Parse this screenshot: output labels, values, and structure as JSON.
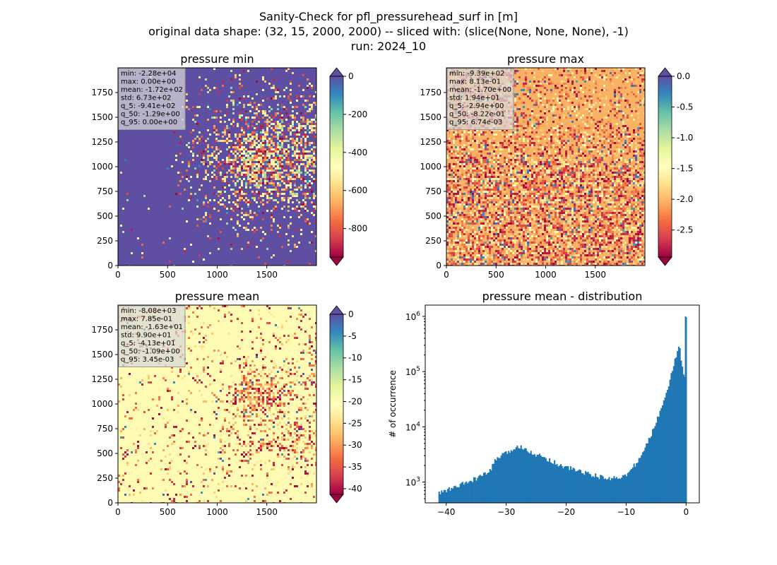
{
  "title_lines": [
    "Sanity-Check for pfl_pressurehead_surf in [m]",
    "original data shape: (32, 15, 2000, 2000) -- sliced with: (slice(None, None, None), -1)",
    "run: 2024_10"
  ],
  "panels": [
    {
      "title": "pressure min",
      "xticks": [
        "0",
        "500",
        "1000",
        "1500"
      ],
      "yticks": [
        "0",
        "250",
        "500",
        "750",
        "1000",
        "1250",
        "1500",
        "1750"
      ],
      "stats": [
        "min: -2.28e+04",
        "max: 0.00e+00",
        "mean: -1.72e+02",
        "std: 6.73e+02",
        "q_5: -9.41e+02",
        "q_50: -1.29e+00",
        "q_95: 0.00e+00"
      ],
      "colorbar": {
        "range": [
          -950,
          0
        ],
        "ticks": [
          "0",
          "-200",
          "-400",
          "-600",
          "-800"
        ],
        "tick_values": [
          0,
          -200,
          -400,
          -600,
          -800
        ],
        "extend": "both"
      },
      "background_color": "#5e4fa2"
    },
    {
      "title": "pressure max",
      "xticks": [
        "0",
        "500",
        "1000",
        "1500"
      ],
      "yticks": [
        "0",
        "250",
        "500",
        "750",
        "1000",
        "1250",
        "1500",
        "1750"
      ],
      "stats": [
        "min: -9.39e+02",
        "max: 8.13e-01",
        "mean: -1.70e+00",
        "std: 1.94e+01",
        "q_5: -2.94e+00",
        "q_50: -8.22e-01",
        "q_95: 6.74e-03"
      ],
      "colorbar": {
        "range": [
          -2.94,
          0.0
        ],
        "ticks": [
          "0.0",
          "-0.5",
          "-1.0",
          "-1.5",
          "-2.0",
          "-2.5"
        ],
        "tick_values": [
          0,
          -0.5,
          -1.0,
          -1.5,
          -2.0,
          -2.5
        ],
        "extend": "both"
      },
      "background_color": "#f7b363"
    },
    {
      "title": "pressure mean",
      "xticks": [
        "0",
        "500",
        "1000",
        "1500"
      ],
      "yticks": [
        "0",
        "250",
        "500",
        "750",
        "1000",
        "1250",
        "1500",
        "1750"
      ],
      "stats": [
        "min: -8.08e+03",
        "max: 7.85e-01",
        "mean: -1.63e+01",
        "std: 9.90e+01",
        "q_5: -4.13e+01",
        "q_50: -1.09e+00",
        "q_95: 3.45e-03"
      ],
      "colorbar": {
        "range": [
          -41.3,
          0
        ],
        "ticks": [
          "0",
          "-5",
          "-10",
          "-15",
          "-20",
          "-25",
          "-30",
          "-35",
          "-40"
        ],
        "tick_values": [
          0,
          -5,
          -10,
          -15,
          -20,
          -25,
          -30,
          -35,
          -40
        ],
        "extend": "both"
      },
      "background_color": "#fdfbb4"
    }
  ],
  "chart_data": [
    {
      "type": "heatmap",
      "title": "pressure min",
      "x_range": [
        0,
        2000
      ],
      "y_range": [
        0,
        2000
      ],
      "colormap": "Spectral",
      "value_range": [
        -950,
        0
      ]
    },
    {
      "type": "heatmap",
      "title": "pressure max",
      "x_range": [
        0,
        2000
      ],
      "y_range": [
        0,
        2000
      ],
      "colormap": "Spectral",
      "value_range": [
        -2.94,
        0.0
      ]
    },
    {
      "type": "heatmap",
      "title": "pressure mean",
      "x_range": [
        0,
        2000
      ],
      "y_range": [
        0,
        2000
      ],
      "colormap": "Spectral",
      "value_range": [
        -41.3,
        0
      ]
    },
    {
      "type": "bar",
      "title": "pressure mean - distribution",
      "xlabel": "",
      "ylabel": "# of occurrence",
      "log_y": true,
      "xlim": [
        -43.5,
        2.2
      ],
      "ylim": [
        420,
        1600000
      ],
      "xticks": [
        "−40",
        "−30",
        "−20",
        "−10",
        "0"
      ],
      "xtick_values": [
        -40,
        -30,
        -20,
        -10,
        0
      ],
      "yticks": [
        {
          "base": "10",
          "exp": "3",
          "value": 1000
        },
        {
          "base": "10",
          "exp": "4",
          "value": 10000
        },
        {
          "base": "10",
          "exp": "5",
          "value": 100000
        },
        {
          "base": "10",
          "exp": "6",
          "value": 1000000
        }
      ],
      "bar_color": "#1f77b4",
      "bin_width": 0.207,
      "anchors": [
        [
          -41.3,
          620
        ],
        [
          -40.5,
          680
        ],
        [
          -39.5,
          740
        ],
        [
          -38.5,
          800
        ],
        [
          -37.5,
          900
        ],
        [
          -36.5,
          980
        ],
        [
          -35.5,
          1100
        ],
        [
          -34.5,
          1250
        ],
        [
          -33.5,
          1380
        ],
        [
          -33.0,
          1500
        ],
        [
          -32.5,
          1700
        ],
        [
          -32.0,
          2400
        ],
        [
          -31.5,
          2700
        ],
        [
          -31.0,
          2900
        ],
        [
          -30.0,
          3300
        ],
        [
          -29.0,
          3900
        ],
        [
          -28.0,
          4300
        ],
        [
          -27.5,
          4500
        ],
        [
          -27.0,
          4200
        ],
        [
          -26.0,
          3600
        ],
        [
          -25.0,
          3100
        ],
        [
          -24.0,
          2900
        ],
        [
          -23.0,
          2600
        ],
        [
          -22.0,
          2300
        ],
        [
          -21.0,
          2000
        ],
        [
          -20.0,
          1850
        ],
        [
          -19.0,
          1750
        ],
        [
          -18.0,
          1600
        ],
        [
          -17.0,
          1500
        ],
        [
          -16.0,
          1380
        ],
        [
          -15.0,
          1300
        ],
        [
          -14.0,
          1200
        ],
        [
          -13.0,
          1150
        ],
        [
          -12.0,
          1200
        ],
        [
          -11.0,
          1250
        ],
        [
          -10.0,
          1300
        ],
        [
          -9.5,
          1500
        ],
        [
          -9.0,
          1800
        ],
        [
          -8.5,
          2100
        ],
        [
          -8.0,
          2400
        ],
        [
          -7.5,
          3000
        ],
        [
          -7.0,
          3800
        ],
        [
          -6.5,
          5000
        ],
        [
          -6.0,
          6500
        ],
        [
          -5.5,
          9000
        ],
        [
          -5.0,
          12000
        ],
        [
          -4.5,
          17000
        ],
        [
          -4.0,
          25000
        ],
        [
          -3.5,
          38000
        ],
        [
          -3.0,
          55000
        ],
        [
          -2.5,
          85000
        ],
        [
          -2.0,
          140000
        ],
        [
          -1.5,
          230000
        ],
        [
          -1.2,
          280000
        ],
        [
          -1.0,
          240000
        ],
        [
          -0.8,
          160000
        ],
        [
          -0.6,
          110000
        ],
        [
          -0.4,
          90000
        ],
        [
          -0.2,
          75000
        ],
        [
          0.0,
          1000000
        ]
      ]
    }
  ]
}
